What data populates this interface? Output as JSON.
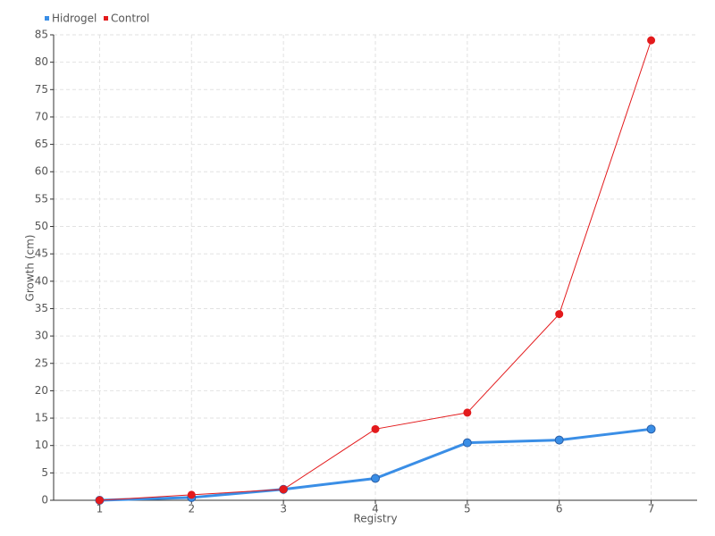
{
  "chart_data": {
    "type": "line",
    "categories": [
      "1",
      "2",
      "3",
      "4",
      "5",
      "6",
      "7"
    ],
    "series": [
      {
        "name": "Hidrogel",
        "color": "#3a8ee6",
        "values": [
          0,
          0.5,
          2,
          4,
          10.5,
          11,
          13
        ]
      },
      {
        "name": "Control",
        "color": "#e31a1c",
        "values": [
          0,
          1,
          2,
          13,
          16,
          34,
          84
        ]
      }
    ],
    "x_label": "Registry",
    "y_label": "Growth (cm)",
    "ylim": [
      0,
      85
    ],
    "yticks": [
      0,
      5,
      10,
      15,
      20,
      25,
      30,
      35,
      40,
      45,
      50,
      55,
      60,
      65,
      70,
      75,
      80,
      85
    ],
    "grid": true,
    "legend": "top-left"
  }
}
